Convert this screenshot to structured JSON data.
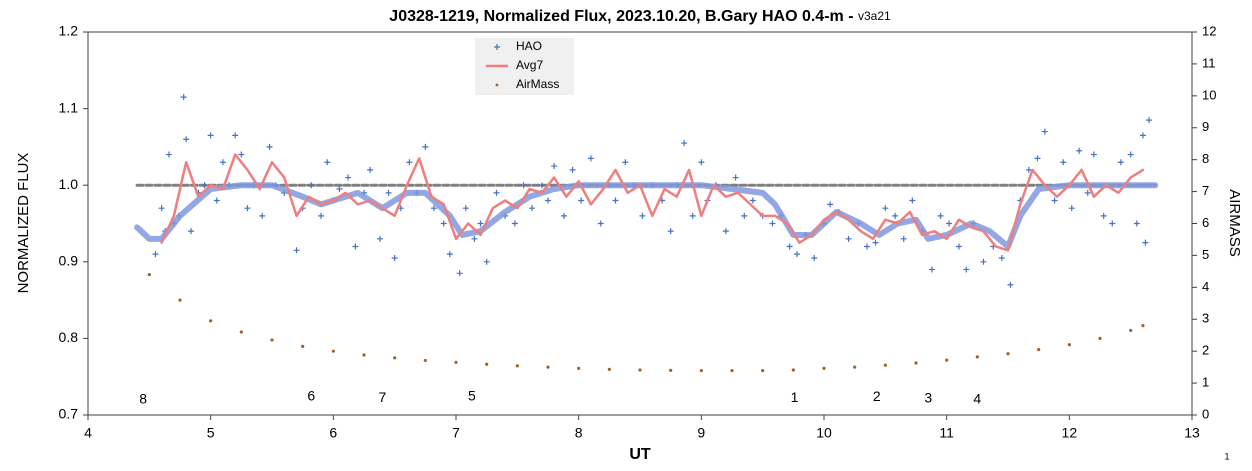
{
  "chart_data": {
    "type": "line",
    "title": "J0328-1219, Normalized Flux, 2023.10.20, B.Gary HAO 0.4-m -",
    "subtitle": "v3a21",
    "xlabel": "UT",
    "ylabel": "NORMALIZED FLUX",
    "y2label": "AIRMASS",
    "page_number": "1",
    "xlim": [
      4,
      13
    ],
    "xticks": [
      4,
      5,
      6,
      7,
      8,
      9,
      10,
      11,
      12,
      13
    ],
    "ylim": [
      0.7,
      1.2
    ],
    "yticks": [
      0.7,
      0.8,
      0.9,
      {
        "value": 1,
        "label": "1.0"
      },
      1.1,
      1.2
    ],
    "y2lim": [
      0,
      12
    ],
    "y2ticks": [
      0,
      1,
      2,
      3,
      4,
      5,
      6,
      7,
      8,
      9,
      10,
      11,
      12
    ],
    "grid": false,
    "legend": "top",
    "series": [
      {
        "style": "dashed-line",
        "color": "#808080",
        "x": [
          4.4,
          12.7
        ],
        "values": [
          1,
          1
        ]
      },
      {
        "style": "thick-line",
        "color": "#7f98de",
        "x": [
          4.4,
          4.5,
          4.6,
          4.75,
          5.0,
          5.25,
          5.5,
          5.75,
          5.9,
          6.1,
          6.2,
          6.4,
          6.6,
          6.75,
          6.95,
          7.05,
          7.2,
          7.4,
          7.6,
          7.8,
          8.0,
          8.5,
          9.0,
          9.5,
          9.6,
          9.75,
          9.9,
          10.1,
          10.3,
          10.45,
          10.6,
          10.75,
          10.85,
          11.0,
          11.2,
          11.35,
          11.5,
          11.6,
          11.75,
          12.0,
          12.7
        ],
        "values": [
          0.945,
          0.93,
          0.93,
          0.96,
          0.995,
          1.0,
          1.0,
          0.985,
          0.975,
          0.985,
          0.99,
          0.97,
          0.99,
          0.99,
          0.96,
          0.935,
          0.94,
          0.965,
          0.985,
          0.995,
          1.0,
          1.0,
          1.0,
          0.99,
          0.975,
          0.935,
          0.935,
          0.965,
          0.95,
          0.935,
          0.95,
          0.955,
          0.93,
          0.935,
          0.95,
          0.94,
          0.92,
          0.96,
          0.995,
          1.0,
          1.0
        ]
      },
      {
        "name": "HAO",
        "style": "plus",
        "color": "#4472c4",
        "x": [
          4.55,
          4.6,
          4.63,
          4.66,
          4.7,
          4.74,
          4.78,
          4.8,
          4.84,
          4.9,
          4.95,
          5.0,
          5.05,
          5.1,
          5.15,
          5.2,
          5.25,
          5.3,
          5.35,
          5.42,
          5.48,
          5.53,
          5.6,
          5.7,
          5.75,
          5.82,
          5.9,
          5.95,
          6.0,
          6.05,
          6.12,
          6.18,
          6.25,
          6.3,
          6.38,
          6.45,
          6.5,
          6.55,
          6.62,
          6.68,
          6.75,
          6.82,
          6.9,
          6.95,
          7.03,
          7.08,
          7.15,
          7.2,
          7.25,
          7.33,
          7.4,
          7.48,
          7.55,
          7.62,
          7.7,
          7.75,
          7.8,
          7.88,
          7.95,
          8.02,
          8.1,
          8.18,
          8.25,
          8.3,
          8.38,
          8.45,
          8.52,
          8.6,
          8.68,
          8.75,
          8.8,
          8.86,
          8.93,
          9.0,
          9.05,
          9.12,
          9.2,
          9.28,
          9.35,
          9.42,
          9.5,
          9.58,
          9.65,
          9.72,
          9.78,
          9.85,
          9.92,
          10.0,
          10.05,
          10.12,
          10.2,
          10.28,
          10.35,
          10.42,
          10.5,
          10.58,
          10.65,
          10.72,
          10.8,
          10.88,
          10.95,
          11.02,
          11.1,
          11.16,
          11.22,
          11.3,
          11.38,
          11.45,
          11.52,
          11.6,
          11.67,
          11.74,
          11.8,
          11.88,
          11.95,
          12.02,
          12.08,
          12.15,
          12.2,
          12.28,
          12.35,
          12.42,
          12.5,
          12.55,
          12.6,
          12.65,
          12.62
        ],
        "values": [
          0.91,
          0.97,
          0.94,
          1.04,
          0.95,
          0.96,
          1.115,
          1.06,
          0.94,
          0.99,
          1.0,
          1.065,
          0.98,
          1.03,
          1.0,
          1.065,
          1.04,
          0.97,
          1.0,
          0.96,
          1.05,
          1.0,
          0.99,
          0.915,
          0.97,
          1.0,
          0.96,
          1.03,
          0.98,
          0.995,
          1.01,
          0.92,
          0.99,
          1.02,
          0.93,
          0.99,
          0.905,
          0.97,
          1.03,
          0.99,
          1.05,
          0.97,
          0.95,
          0.91,
          0.885,
          0.97,
          0.93,
          0.95,
          0.9,
          0.99,
          0.96,
          0.95,
          1.0,
          0.97,
          1.0,
          0.98,
          1.025,
          0.96,
          1.02,
          0.98,
          1.035,
          0.95,
          1.0,
          0.98,
          1.03,
          1.0,
          0.96,
          1.0,
          0.98,
          0.94,
          1.0,
          1.055,
          0.96,
          1.03,
          0.98,
          1.0,
          0.94,
          1.01,
          0.96,
          0.98,
          0.96,
          0.95,
          0.96,
          0.92,
          0.91,
          0.935,
          0.905,
          0.95,
          0.975,
          0.965,
          0.93,
          0.95,
          0.92,
          0.925,
          0.97,
          0.96,
          0.93,
          0.98,
          0.94,
          0.89,
          0.96,
          0.95,
          0.92,
          0.89,
          0.95,
          0.9,
          0.92,
          0.905,
          0.87,
          0.98,
          1.02,
          1.035,
          1.07,
          0.98,
          1.03,
          0.97,
          1.045,
          0.99,
          1.04,
          0.96,
          0.95,
          1.03,
          1.04,
          0.95,
          1.065,
          1.085,
          0.925
        ]
      },
      {
        "name": "Avg7",
        "style": "line",
        "color": "#ef7f7f",
        "x": [
          4.6,
          4.7,
          4.8,
          4.9,
          5.0,
          5.1,
          5.2,
          5.3,
          5.4,
          5.5,
          5.6,
          5.7,
          5.8,
          5.9,
          6.0,
          6.1,
          6.2,
          6.3,
          6.4,
          6.5,
          6.6,
          6.7,
          6.8,
          6.9,
          7.0,
          7.1,
          7.2,
          7.3,
          7.4,
          7.5,
          7.6,
          7.7,
          7.8,
          7.9,
          8.0,
          8.1,
          8.2,
          8.3,
          8.4,
          8.5,
          8.6,
          8.7,
          8.8,
          8.9,
          9.0,
          9.1,
          9.2,
          9.3,
          9.4,
          9.5,
          9.6,
          9.7,
          9.8,
          9.9,
          10.0,
          10.1,
          10.2,
          10.3,
          10.4,
          10.5,
          10.6,
          10.7,
          10.8,
          10.9,
          11.0,
          11.1,
          11.2,
          11.3,
          11.4,
          11.5,
          11.6,
          11.7,
          11.8,
          11.9,
          12.0,
          12.1,
          12.2,
          12.3,
          12.4,
          12.5,
          12.6
        ],
        "values": [
          0.925,
          0.96,
          1.03,
          0.985,
          1.0,
          0.995,
          1.04,
          1.02,
          0.995,
          1.03,
          1.01,
          0.96,
          0.985,
          0.975,
          0.98,
          0.99,
          0.975,
          0.98,
          0.97,
          0.96,
          1.0,
          1.035,
          0.985,
          0.975,
          0.93,
          0.95,
          0.935,
          0.97,
          0.98,
          0.97,
          0.995,
          0.99,
          1.01,
          0.985,
          1.005,
          0.975,
          0.995,
          1.02,
          0.99,
          1.0,
          0.96,
          0.995,
          0.985,
          1.02,
          0.96,
          1.0,
          0.985,
          0.99,
          0.975,
          0.96,
          0.96,
          0.95,
          0.925,
          0.935,
          0.955,
          0.965,
          0.955,
          0.94,
          0.93,
          0.955,
          0.95,
          0.965,
          0.935,
          0.94,
          0.93,
          0.955,
          0.945,
          0.94,
          0.92,
          0.915,
          0.975,
          1.02,
          1.0,
          0.985,
          1.0,
          1.02,
          0.985,
          1.0,
          0.99,
          1.01,
          1.02
        ]
      },
      {
        "name": "AirMass",
        "style": "dot",
        "color": "#a0622a",
        "axis": "y2",
        "x": [
          4.5,
          4.75,
          5.0,
          5.25,
          5.5,
          5.75,
          6.0,
          6.25,
          6.5,
          6.75,
          7.0,
          7.25,
          7.5,
          7.75,
          8.0,
          8.25,
          8.5,
          8.75,
          9.0,
          9.25,
          9.5,
          9.75,
          10.0,
          10.25,
          10.5,
          10.75,
          11.0,
          11.25,
          11.5,
          11.75,
          12.0,
          12.25,
          12.5,
          12.6
        ],
        "values": [
          4.4,
          3.6,
          2.95,
          2.6,
          2.35,
          2.15,
          2.0,
          1.88,
          1.79,
          1.71,
          1.65,
          1.59,
          1.54,
          1.5,
          1.46,
          1.43,
          1.41,
          1.4,
          1.39,
          1.39,
          1.39,
          1.41,
          1.46,
          1.5,
          1.56,
          1.63,
          1.72,
          1.82,
          1.92,
          2.05,
          2.2,
          2.4,
          2.65,
          2.8
        ]
      }
    ],
    "annotations": [
      {
        "text": "8",
        "x": 4.45,
        "y": 0.72
      },
      {
        "text": "6",
        "x": 5.82,
        "y": 0.724
      },
      {
        "text": "7",
        "x": 6.4,
        "y": 0.722
      },
      {
        "text": "5",
        "x": 7.13,
        "y": 0.724
      },
      {
        "text": "1",
        "x": 9.76,
        "y": 0.722
      },
      {
        "text": "2",
        "x": 10.43,
        "y": 0.723
      },
      {
        "text": "3",
        "x": 10.85,
        "y": 0.721
      },
      {
        "text": "4",
        "x": 11.25,
        "y": 0.72
      }
    ]
  }
}
